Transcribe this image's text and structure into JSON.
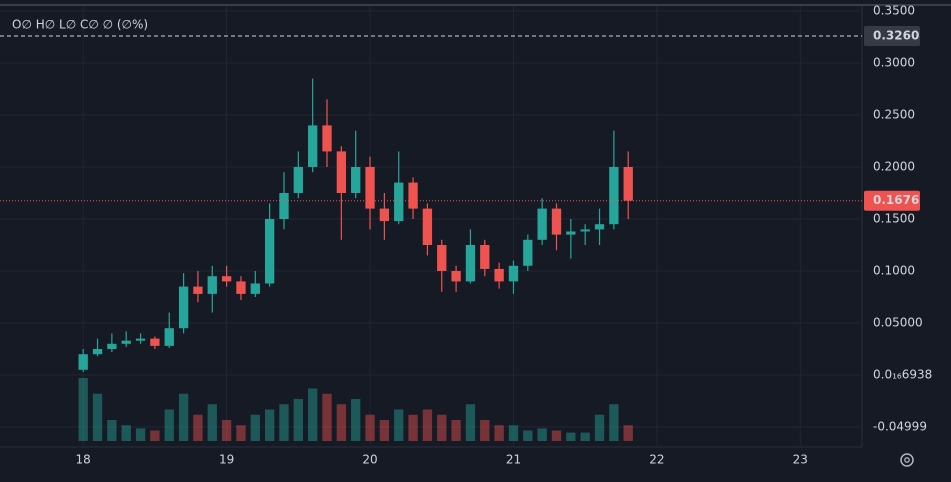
{
  "chart_data": {
    "type": "candlestick",
    "legend_text": "O∅ H∅ L∅ C∅ ∅ (∅%)",
    "x": [
      18.0,
      18.1,
      18.2,
      18.3,
      18.4,
      18.5,
      18.6,
      18.7,
      18.8,
      18.9,
      19.0,
      19.1,
      19.2,
      19.3,
      19.4,
      19.5,
      19.6,
      19.7,
      19.8,
      19.9,
      20.0,
      20.1,
      20.2,
      20.3,
      20.4,
      20.5,
      20.6,
      20.7,
      20.8,
      20.9,
      21.0,
      21.1,
      21.2,
      21.3,
      21.4,
      21.5,
      21.6,
      21.7,
      21.8
    ],
    "open": [
      0.005,
      0.02,
      0.025,
      0.03,
      0.033,
      0.035,
      0.028,
      0.045,
      0.085,
      0.078,
      0.095,
      0.09,
      0.078,
      0.088,
      0.15,
      0.175,
      0.2,
      0.24,
      0.215,
      0.175,
      0.2,
      0.16,
      0.148,
      0.185,
      0.16,
      0.125,
      0.1,
      0.09,
      0.125,
      0.102,
      0.09,
      0.105,
      0.13,
      0.16,
      0.135,
      0.138,
      0.14,
      0.145,
      0.2
    ],
    "high": [
      0.025,
      0.035,
      0.04,
      0.042,
      0.04,
      0.037,
      0.06,
      0.098,
      0.1,
      0.105,
      0.105,
      0.095,
      0.1,
      0.165,
      0.195,
      0.215,
      0.285,
      0.265,
      0.22,
      0.235,
      0.21,
      0.175,
      0.215,
      0.19,
      0.165,
      0.13,
      0.105,
      0.14,
      0.13,
      0.108,
      0.11,
      0.135,
      0.17,
      0.165,
      0.15,
      0.145,
      0.16,
      0.235,
      0.215
    ],
    "low": [
      0.003,
      0.018,
      0.022,
      0.027,
      0.03,
      0.025,
      0.026,
      0.04,
      0.07,
      0.06,
      0.085,
      0.072,
      0.075,
      0.085,
      0.14,
      0.17,
      0.195,
      0.2,
      0.13,
      0.17,
      0.14,
      0.13,
      0.145,
      0.15,
      0.115,
      0.08,
      0.08,
      0.088,
      0.095,
      0.083,
      0.078,
      0.1,
      0.125,
      0.12,
      0.112,
      0.125,
      0.125,
      0.14,
      0.15
    ],
    "close": [
      0.02,
      0.025,
      0.03,
      0.033,
      0.035,
      0.028,
      0.045,
      0.085,
      0.078,
      0.095,
      0.09,
      0.078,
      0.088,
      0.15,
      0.175,
      0.2,
      0.24,
      0.215,
      0.175,
      0.2,
      0.16,
      0.148,
      0.185,
      0.16,
      0.125,
      0.1,
      0.09,
      0.125,
      0.102,
      0.09,
      0.105,
      0.13,
      0.16,
      0.135,
      0.138,
      0.14,
      0.145,
      0.2,
      0.1676
    ],
    "volume": [
      60,
      45,
      20,
      15,
      12,
      10,
      30,
      45,
      25,
      35,
      20,
      15,
      25,
      30,
      35,
      40,
      50,
      45,
      35,
      40,
      25,
      20,
      30,
      25,
      30,
      25,
      20,
      35,
      20,
      15,
      15,
      10,
      12,
      10,
      8,
      8,
      25,
      35,
      15
    ],
    "xlim": [
      17.42,
      23.43
    ],
    "xticks": [
      18,
      19,
      20,
      21,
      22,
      23
    ],
    "ylim": [
      -0.0673,
      0.3548
    ],
    "yticks": [
      {
        "value": 0.35,
        "label": "0.3500"
      },
      {
        "value": 0.3,
        "label": "0.3000"
      },
      {
        "value": 0.25,
        "label": "0.2500"
      },
      {
        "value": 0.2,
        "label": "0.2000"
      },
      {
        "value": 0.15,
        "label": "0.1500"
      },
      {
        "value": 0.1,
        "label": "0.1000"
      },
      {
        "value": 0.05,
        "label": "0.05000"
      },
      {
        "value": 6.938e-17,
        "label": "0.0₁₆6938"
      },
      -0.04999
    ],
    "grid": true,
    "up_color": "#26a69a",
    "down_color": "#ef5350",
    "price_line": {
      "value": 0.326,
      "label": "0.3260"
    },
    "last_price": {
      "value": 0.1676,
      "label": "0.1676"
    }
  }
}
